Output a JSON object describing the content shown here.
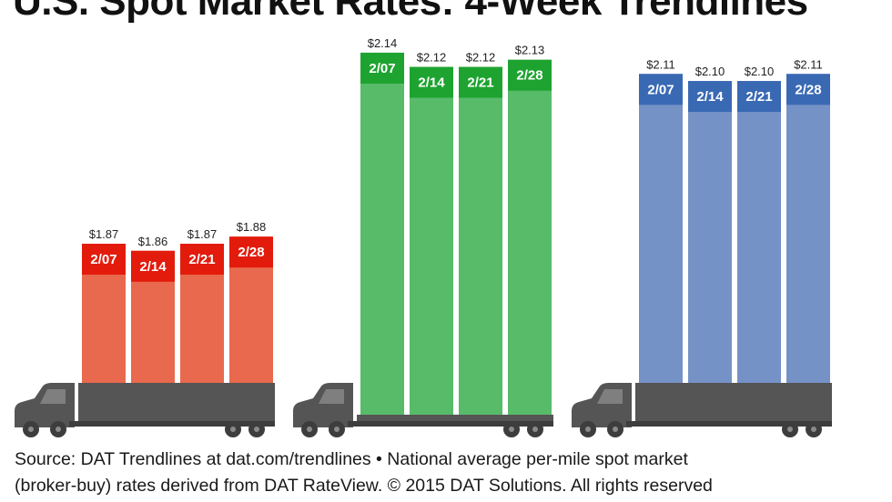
{
  "title": "U.S. Spot Market Rates: 4-Week Trendlines",
  "source": {
    "line1": "Source: DAT Trendlines at dat.com/trendlines • National average per-mile spot market",
    "line2": "(broker-buy) rates derived from DAT RateView. © 2015 DAT Solutions. All rights reserved"
  },
  "chart_data": [
    {
      "type": "bar",
      "categories": [
        "2/07",
        "2/14",
        "2/21",
        "2/28"
      ],
      "values": [
        1.87,
        1.86,
        1.87,
        1.88
      ],
      "value_labels": [
        "$1.87",
        "$1.86",
        "$1.87",
        "$1.88"
      ],
      "color": "#e8694d",
      "cap_color": "#e31b0c"
    },
    {
      "type": "bar",
      "categories": [
        "2/07",
        "2/14",
        "2/21",
        "2/28"
      ],
      "values": [
        2.14,
        2.12,
        2.12,
        2.13
      ],
      "value_labels": [
        "$2.14",
        "$2.12",
        "$2.12",
        "$2.13"
      ],
      "color": "#58bb6a",
      "cap_color": "#1ea331"
    },
    {
      "type": "bar",
      "categories": [
        "2/07",
        "2/14",
        "2/21",
        "2/28"
      ],
      "values": [
        2.11,
        2.1,
        2.1,
        2.11
      ],
      "value_labels": [
        "$2.11",
        "$2.10",
        "$2.10",
        "$2.11"
      ],
      "color": "#7592c7",
      "cap_color": "#3a69b4"
    }
  ],
  "truck_color": "#555555",
  "truck_dark": "#3d3d3d"
}
